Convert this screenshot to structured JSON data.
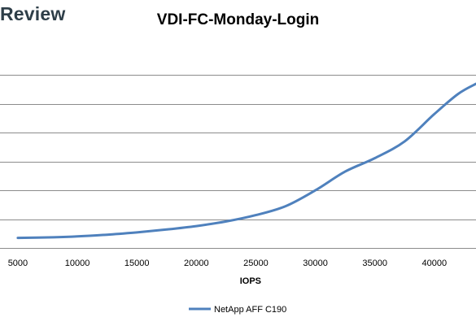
{
  "brand": {
    "label": "Review",
    "color": "#2e3e48"
  },
  "chart_data": {
    "type": "line",
    "title": "VDI-FC-Monday-Login",
    "xlabel": "IOPS",
    "ylabel": "",
    "xlim": [
      3500,
      43500
    ],
    "ylim": [
      0,
      7
    ],
    "x_ticks": [
      5000,
      10000,
      15000,
      20000,
      25000,
      30000,
      35000,
      40000
    ],
    "y_gridlines": [
      1,
      2,
      3,
      4,
      5,
      6
    ],
    "grid": true,
    "legend_position": "bottom",
    "series": [
      {
        "name": "NetApp AFF C190",
        "color": "#4f81bd",
        "x": [
          5000,
          8000,
          10000,
          12500,
          15000,
          17500,
          20000,
          22500,
          25000,
          27500,
          30000,
          32500,
          35000,
          37500,
          40000,
          42000,
          43500
        ],
        "y": [
          0.35,
          0.37,
          0.4,
          0.46,
          0.54,
          0.64,
          0.76,
          0.92,
          1.14,
          1.45,
          2.0,
          2.65,
          3.12,
          3.7,
          4.65,
          5.35,
          5.7
        ]
      }
    ]
  }
}
